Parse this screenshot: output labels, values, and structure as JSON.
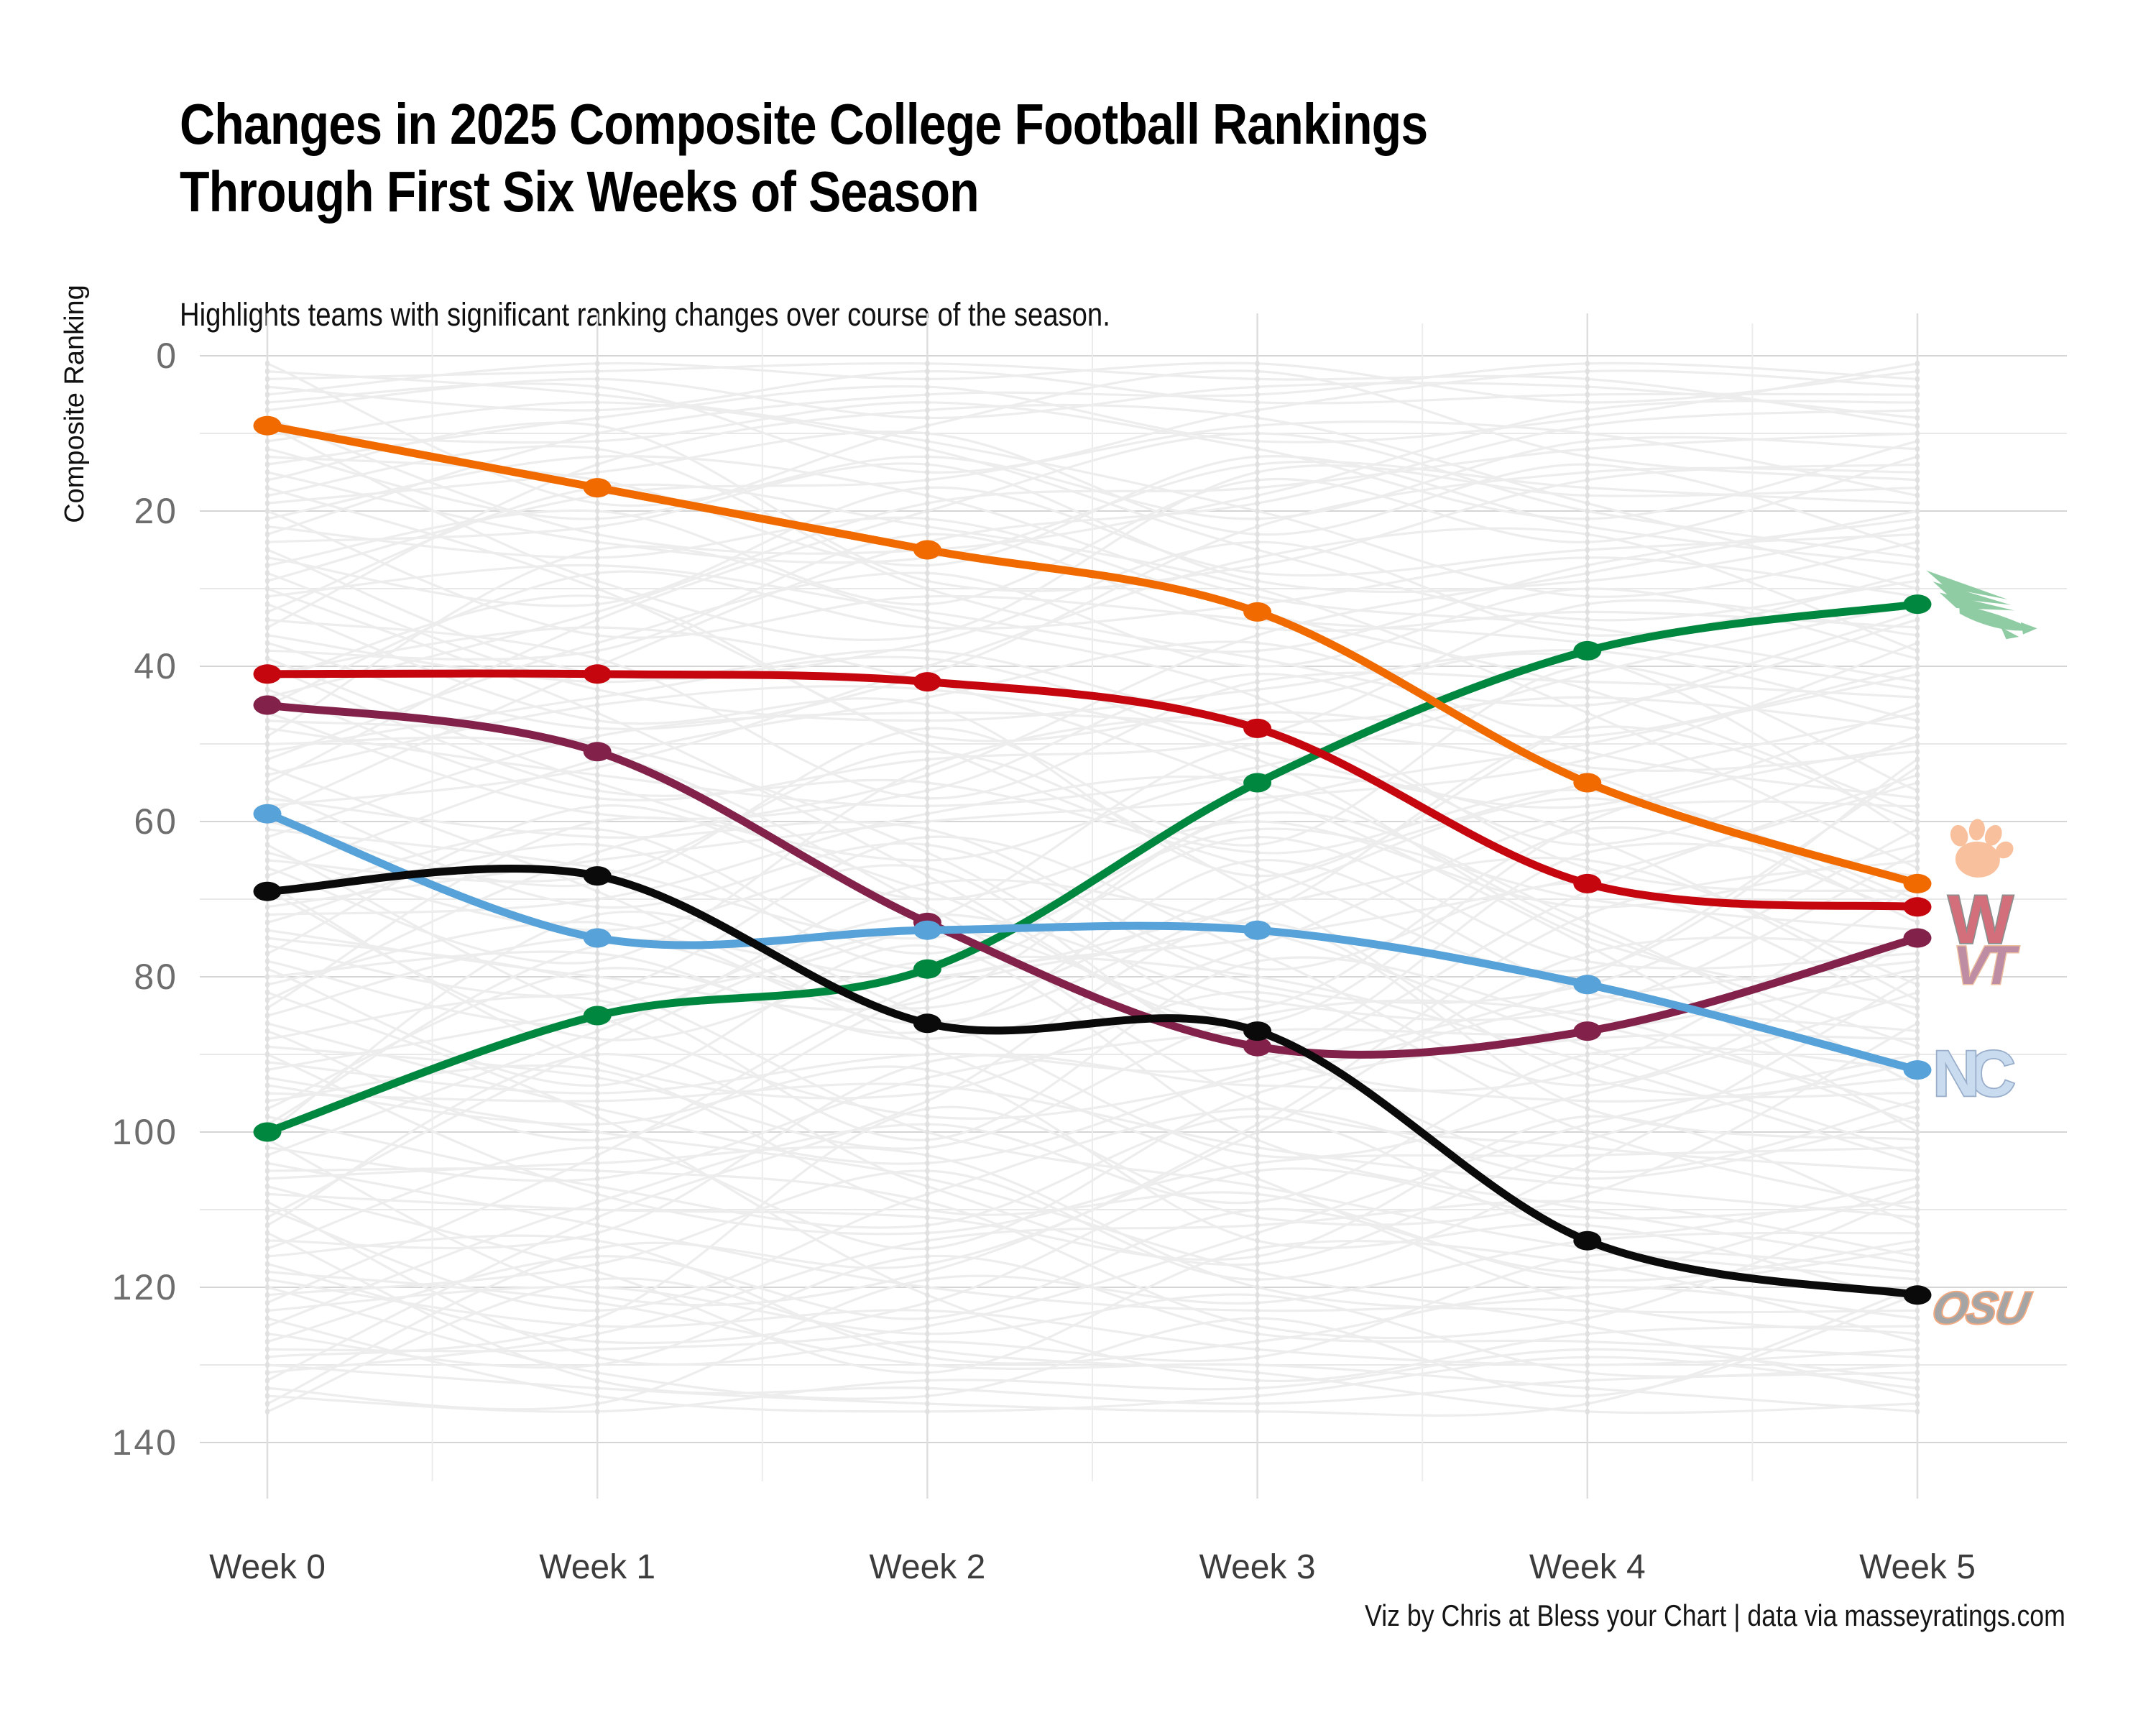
{
  "header": {
    "title_line1": "Changes in 2025 Composite College Football Rankings",
    "title_line2": "Through First Six Weeks of Season",
    "subtitle": "Highlights teams with significant ranking changes over course of the season."
  },
  "footer": {
    "credit": "Viz by Chris at Bless your Chart | data via masseyratings.com"
  },
  "chart_data": {
    "type": "line",
    "title": "Changes in 2025 Composite College Football Rankings Through First Six Weeks of Season",
    "subtitle": "Highlights teams with significant ranking changes over course of the season.",
    "ylabel": "Composite Ranking",
    "xlabel": "",
    "x_categories": [
      "Week 0",
      "Week 1",
      "Week 2",
      "Week 3",
      "Week 4",
      "Week 5"
    ],
    "y_ticks": [
      0,
      20,
      40,
      60,
      80,
      100,
      120,
      140
    ],
    "y_axis_inverted": true,
    "ylim": [
      0,
      143
    ],
    "grid": true,
    "legend_position": "logos-at-line-ends",
    "series": [
      {
        "name": "North Texas",
        "logo": "north-texas-eagle-logo",
        "color": "#00873F",
        "values": [
          100,
          85,
          79,
          55,
          38,
          32
        ]
      },
      {
        "name": "Clemson",
        "logo": "clemson-paw-logo",
        "color": "#F16A00",
        "values": [
          9,
          17,
          25,
          33,
          55,
          68
        ]
      },
      {
        "name": "Wisconsin",
        "logo": "wisconsin-w-logo",
        "color": "#C5060E",
        "values": [
          41,
          41,
          42,
          48,
          68,
          71
        ]
      },
      {
        "name": "Virginia Tech",
        "logo": "virginia-tech-vt-logo",
        "color": "#82224A",
        "values": [
          45,
          51,
          73,
          89,
          87,
          75
        ]
      },
      {
        "name": "North Carolina",
        "logo": "north-carolina-nc-logo",
        "color": "#57A2D9",
        "values": [
          59,
          75,
          74,
          74,
          81,
          92
        ]
      },
      {
        "name": "Oklahoma State",
        "logo": "oklahoma-state-osu-logo",
        "color": "#0A0A0A",
        "values": [
          69,
          67,
          86,
          87,
          114,
          121
        ]
      }
    ],
    "background_series": {
      "count": 136,
      "color": "#EDEDED",
      "dot_color": "#E1E1E1",
      "description": "all other FBS teams, de-emphasized"
    },
    "logo_glyphs": {
      "north-texas-eagle-logo": {
        "fill": "#8FCCA3"
      },
      "clemson-paw-logo": {
        "fill": "#F8C09C"
      },
      "wisconsin-w-logo": {
        "fill": "#D26F7A",
        "stroke": "#8E8E8E",
        "text": "W"
      },
      "virginia-tech-vt-logo": {
        "fill": "#BE8DA3",
        "stroke": "#ECBE9E",
        "text": "VT"
      },
      "north-carolina-nc-logo": {
        "fill": "#C9DBEE",
        "stroke": "#98ADC9",
        "text": "NC"
      },
      "oklahoma-state-osu-logo": {
        "fill": "#A5A5A5",
        "stroke": "#F3AA80",
        "text": "OSU"
      }
    }
  }
}
